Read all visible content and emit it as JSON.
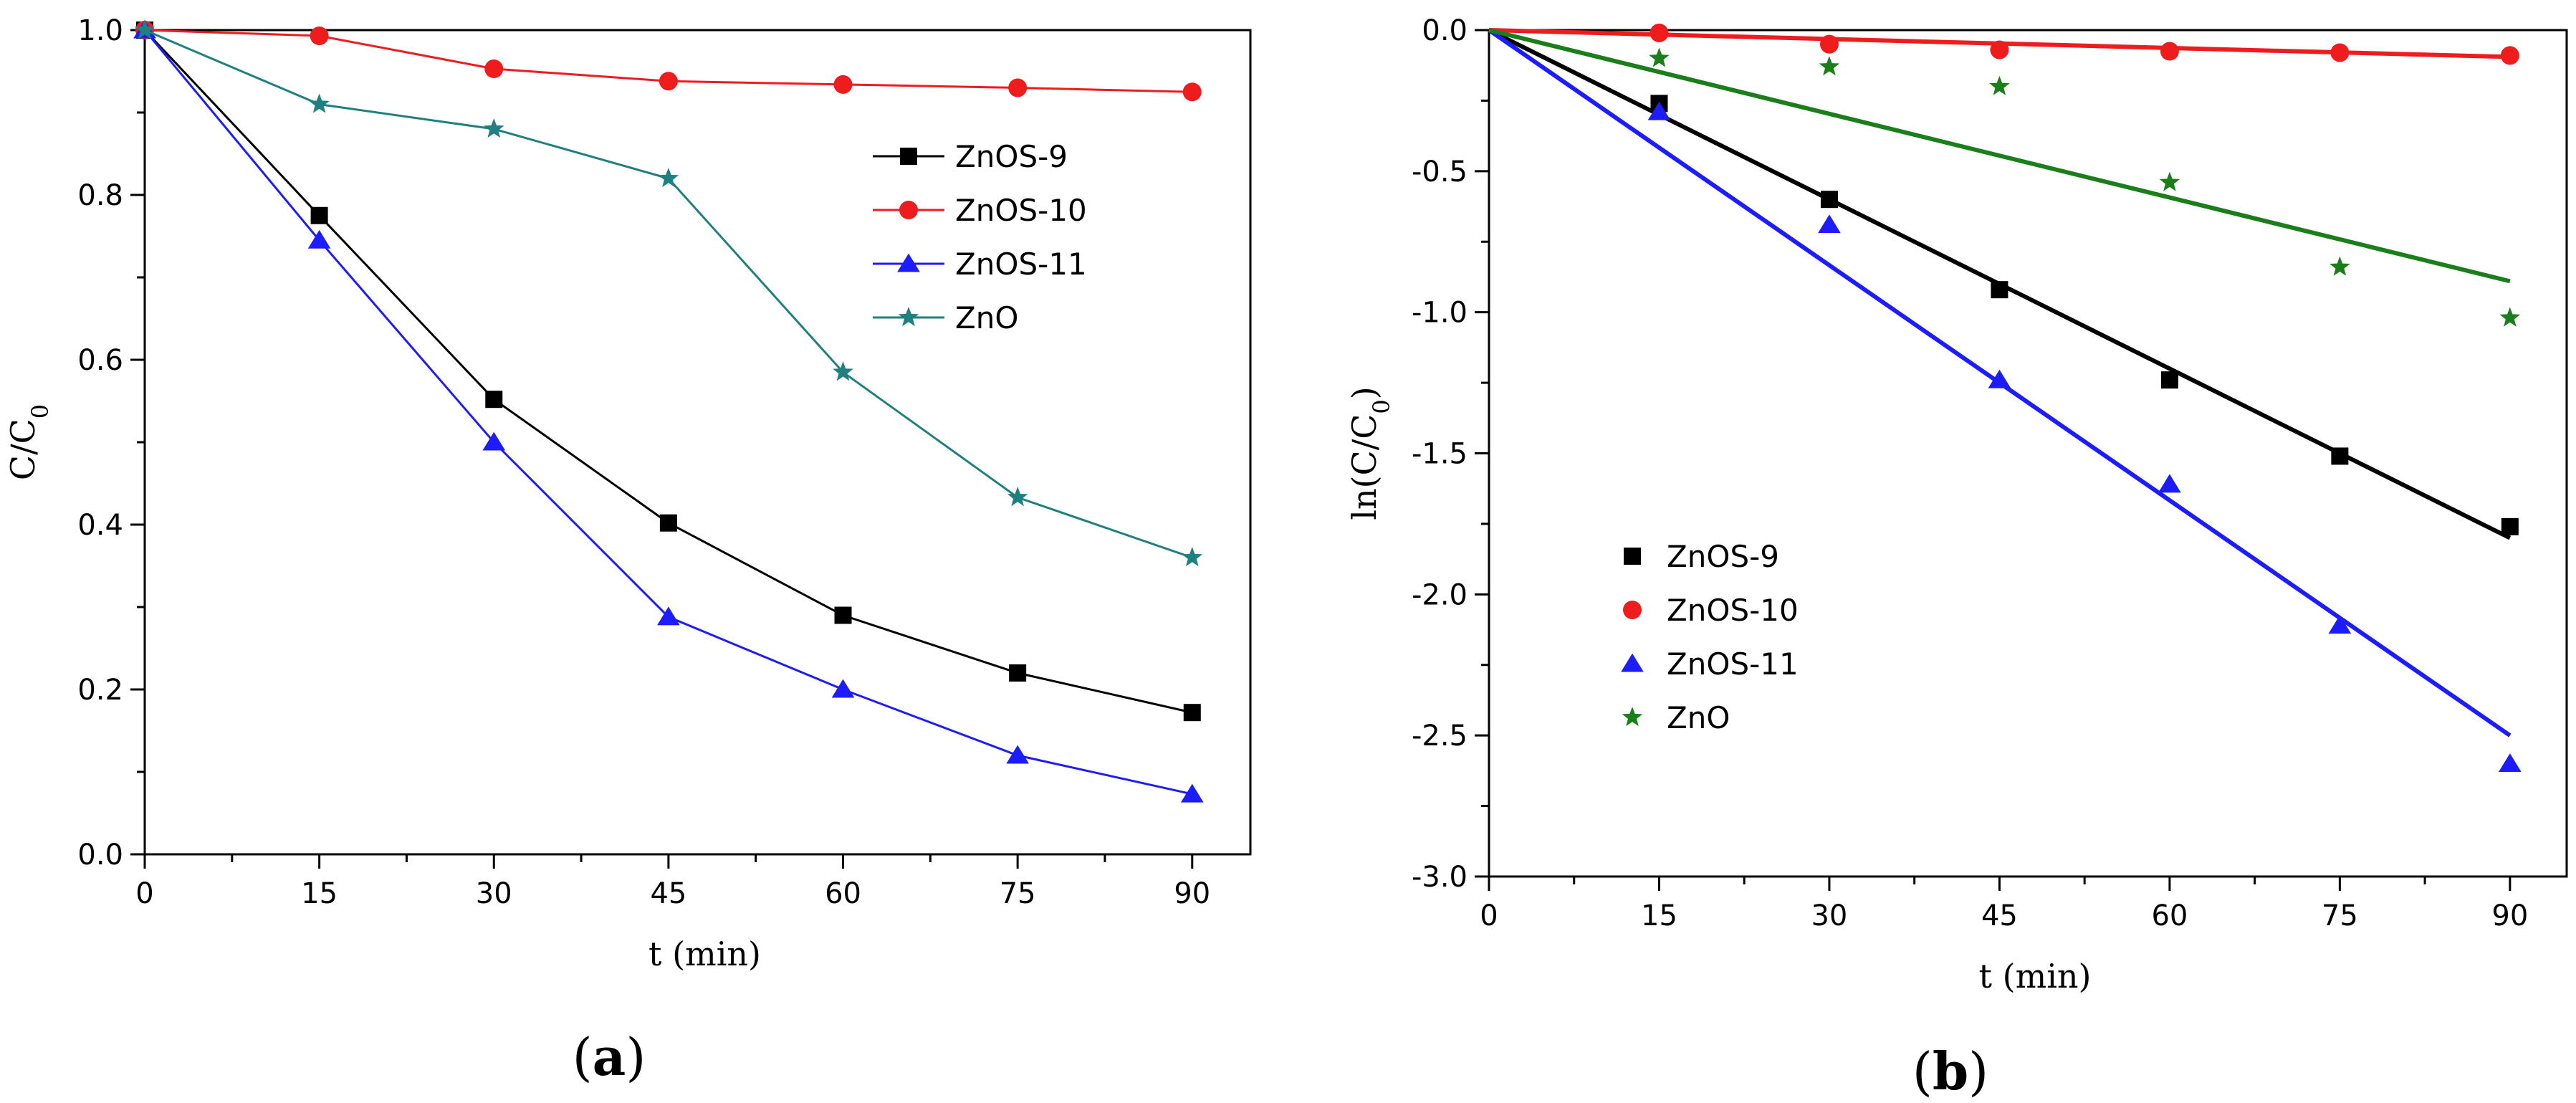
{
  "chart_data": [
    {
      "panel": "a",
      "type": "line",
      "panel_label": "(a)",
      "panel_label_parts": [
        "(",
        "a",
        ")"
      ],
      "xlabel": "t (min)",
      "ylabel": "C/C",
      "ylabel_sub": "0",
      "xlim": [
        0,
        95
      ],
      "ylim": [
        0,
        1.0
      ],
      "x_ticks": [
        0,
        15,
        30,
        45,
        60,
        75,
        90
      ],
      "x_tick_labels": [
        "0",
        "15",
        "30",
        "45",
        "60",
        "75",
        "90"
      ],
      "y_ticks": [
        0,
        0.2,
        0.4,
        0.6,
        0.8,
        1.0
      ],
      "y_tick_labels": [
        "0.0",
        "0.2",
        "0.4",
        "0.6",
        "0.8",
        "1.0"
      ],
      "legend_position": "upper-right",
      "x": [
        0,
        15,
        30,
        45,
        60,
        75,
        90
      ],
      "series": [
        {
          "name": "ZnOS-9",
          "color": "#000000",
          "marker": "square",
          "values": [
            1.0,
            0.775,
            0.552,
            0.402,
            0.29,
            0.22,
            0.172
          ]
        },
        {
          "name": "ZnOS-10",
          "color": "#ee1c1c",
          "marker": "circle",
          "values": [
            1.0,
            0.993,
            0.953,
            0.938,
            0.934,
            0.93,
            0.925
          ]
        },
        {
          "name": "ZnOS-11",
          "color": "#1c1cff",
          "marker": "triangle",
          "values": [
            1.0,
            0.745,
            0.5,
            0.288,
            0.2,
            0.12,
            0.073
          ]
        },
        {
          "name": "ZnO",
          "color": "#1e8080",
          "marker": "star",
          "values": [
            1.0,
            0.91,
            0.88,
            0.82,
            0.585,
            0.433,
            0.36
          ]
        }
      ]
    },
    {
      "panel": "b",
      "type": "scatter",
      "panel_label": "(b)",
      "panel_label_parts": [
        "(",
        "b",
        ")"
      ],
      "xlabel": "t (min)",
      "ylabel": "ln(C/C",
      "ylabel_sub": "0",
      "ylabel_tail": ")",
      "xlim": [
        0,
        95
      ],
      "ylim": [
        -3.0,
        0.0
      ],
      "x_ticks": [
        0,
        15,
        30,
        45,
        60,
        75,
        90
      ],
      "x_tick_labels": [
        "0",
        "15",
        "30",
        "45",
        "60",
        "75",
        "90"
      ],
      "y_ticks": [
        -3.0,
        -2.5,
        -2.0,
        -1.5,
        -1.0,
        -0.5,
        0.0
      ],
      "y_tick_labels": [
        "-3.0",
        "-2.5",
        "-2.0",
        "-1.5",
        "-1.0",
        "-0.5",
        "0.0"
      ],
      "legend_position": "lower-left",
      "x": [
        15,
        30,
        45,
        60,
        75,
        90
      ],
      "series": [
        {
          "name": "ZnOS-9",
          "color": "#000000",
          "marker": "square",
          "values": [
            -0.26,
            -0.6,
            -0.92,
            -1.24,
            -1.51,
            -1.76
          ],
          "fit_end": [
            90,
            -1.8
          ]
        },
        {
          "name": "ZnOS-10",
          "color": "#ee1c1c",
          "marker": "circle",
          "values": [
            -0.01,
            -0.05,
            -0.07,
            -0.075,
            -0.08,
            -0.09
          ],
          "fit_end": [
            90,
            -0.095
          ]
        },
        {
          "name": "ZnOS-11",
          "color": "#1c1cff",
          "marker": "triangle",
          "values": [
            -0.29,
            -0.69,
            -1.24,
            -1.61,
            -2.11,
            -2.6
          ],
          "fit_end": [
            90,
            -2.5
          ]
        },
        {
          "name": "ZnO",
          "color": "#1a7f1a",
          "marker": "star",
          "values": [
            -0.1,
            -0.13,
            -0.2,
            -0.54,
            -0.84,
            -1.02
          ],
          "fit_end": [
            90,
            -0.89
          ]
        }
      ]
    }
  ]
}
